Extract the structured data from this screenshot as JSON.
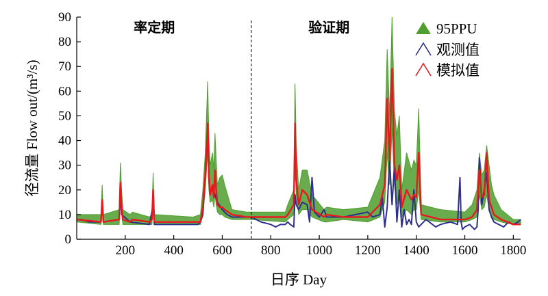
{
  "chart_data": {
    "type": "line",
    "xlabel": "日序 Day",
    "ylabel": "径流量 Flow out/(m³/s)",
    "xlim": [
      0,
      1830
    ],
    "ylim": [
      0,
      90
    ],
    "xticks": [
      200,
      400,
      600,
      800,
      1000,
      1200,
      1400,
      1600,
      1800
    ],
    "yticks": [
      0,
      10,
      20,
      30,
      40,
      50,
      60,
      70,
      80,
      90
    ],
    "grid": false,
    "legend_position": "top-right",
    "periods": [
      {
        "label": "率定期",
        "x_center": 320
      },
      {
        "label": "验证期",
        "x_center": 1040
      }
    ],
    "divider_x": 720,
    "series": [
      {
        "name": "95PPU",
        "kind": "band",
        "color": "#4f9e2f",
        "x": [
          0,
          100,
          105,
          110,
          175,
          180,
          185,
          190,
          220,
          230,
          300,
          310,
          315,
          320,
          480,
          510,
          520,
          530,
          540,
          545,
          550,
          560,
          565,
          570,
          575,
          580,
          590,
          600,
          610,
          640,
          700,
          720,
          860,
          870,
          895,
          900,
          905,
          915,
          930,
          950,
          970,
          1020,
          1030,
          1100,
          1200,
          1250,
          1270,
          1280,
          1290,
          1300,
          1310,
          1320,
          1330,
          1340,
          1360,
          1380,
          1390,
          1400,
          1410,
          1420,
          1500,
          1600,
          1630,
          1650,
          1660,
          1670,
          1680,
          1690,
          1700,
          1710,
          1720,
          1750,
          1800,
          1830
        ],
        "upper": [
          10,
          10,
          22,
          10,
          12,
          31,
          20,
          12,
          10,
          11,
          9,
          10,
          27,
          10,
          9,
          10,
          20,
          35,
          64,
          40,
          30,
          35,
          28,
          43,
          32,
          22,
          25,
          26,
          22,
          12,
          11,
          11,
          11,
          14,
          20,
          63,
          38,
          20,
          28,
          28,
          18,
          12,
          13,
          12,
          13,
          25,
          40,
          77,
          50,
          90,
          52,
          42,
          50,
          20,
          35,
          28,
          32,
          30,
          53,
          14,
          12,
          11,
          14,
          20,
          35,
          26,
          28,
          38,
          30,
          22,
          18,
          12,
          8,
          8
        ],
        "lower": [
          7,
          6,
          12,
          6,
          6,
          15,
          11,
          6,
          6,
          6,
          6,
          6,
          14,
          6,
          6,
          6,
          10,
          20,
          36,
          20,
          15,
          16,
          13,
          18,
          14,
          11,
          10,
          10,
          9,
          8,
          8,
          8,
          7,
          8,
          10,
          30,
          18,
          10,
          12,
          12,
          9,
          7,
          7,
          8,
          7,
          9,
          15,
          35,
          22,
          45,
          22,
          14,
          20,
          9,
          12,
          10,
          12,
          12,
          20,
          8,
          7,
          7,
          8,
          9,
          18,
          12,
          13,
          18,
          12,
          9,
          8,
          7,
          6,
          6
        ]
      },
      {
        "name": "观测值",
        "kind": "line",
        "color": "#2e2e8c",
        "x": [
          0,
          20,
          50,
          100,
          105,
          110,
          175,
          180,
          185,
          220,
          300,
          315,
          320,
          480,
          500,
          510,
          520,
          530,
          540,
          545,
          550,
          560,
          570,
          580,
          600,
          620,
          640,
          660,
          700,
          720,
          760,
          800,
          820,
          840,
          860,
          870,
          880,
          895,
          900,
          905,
          915,
          930,
          950,
          960,
          970,
          980,
          1000,
          1020,
          1030,
          1100,
          1150,
          1200,
          1220,
          1250,
          1260,
          1270,
          1280,
          1290,
          1300,
          1310,
          1320,
          1330,
          1340,
          1350,
          1360,
          1370,
          1380,
          1390,
          1400,
          1410,
          1420,
          1440,
          1480,
          1500,
          1540,
          1570,
          1580,
          1585,
          1590,
          1600,
          1620,
          1640,
          1650,
          1655,
          1660,
          1670,
          1680,
          1690,
          1700,
          1710,
          1720,
          1740,
          1760,
          1780,
          1800,
          1820,
          1830
        ],
        "y": [
          8,
          8,
          7,
          7,
          14,
          7,
          8,
          20,
          10,
          7,
          6,
          14,
          6,
          6,
          6,
          7,
          10,
          26,
          42,
          24,
          18,
          21,
          18,
          15,
          12,
          10,
          9,
          9,
          9,
          9,
          7,
          6,
          5,
          6,
          6,
          7,
          6,
          5,
          18,
          14,
          12,
          15,
          14,
          7,
          25,
          11,
          9,
          12,
          9,
          9,
          10,
          11,
          9,
          10,
          17,
          5,
          13,
          32,
          14,
          30,
          7,
          20,
          5,
          12,
          6,
          8,
          6,
          20,
          7,
          5,
          6,
          8,
          5,
          6,
          7,
          6,
          25,
          7,
          4,
          5,
          6,
          4,
          5,
          12,
          33,
          14,
          20,
          27,
          12,
          9,
          7,
          6,
          5,
          7,
          6,
          7,
          8
        ]
      },
      {
        "name": "模拟值",
        "kind": "line",
        "color": "#e8191e",
        "x": [
          0,
          100,
          105,
          110,
          175,
          180,
          185,
          190,
          220,
          230,
          300,
          310,
          315,
          320,
          480,
          510,
          520,
          530,
          540,
          545,
          550,
          560,
          565,
          570,
          575,
          580,
          590,
          600,
          610,
          640,
          700,
          720,
          860,
          870,
          895,
          900,
          905,
          915,
          930,
          950,
          970,
          1020,
          1030,
          1100,
          1200,
          1250,
          1270,
          1280,
          1290,
          1300,
          1310,
          1320,
          1330,
          1340,
          1360,
          1380,
          1390,
          1400,
          1410,
          1420,
          1500,
          1600,
          1630,
          1650,
          1660,
          1670,
          1680,
          1690,
          1700,
          1710,
          1720,
          1750,
          1800,
          1830
        ],
        "y": [
          8,
          7,
          16,
          7,
          8,
          23,
          14,
          8,
          7,
          8,
          7,
          8,
          20,
          7,
          7,
          7,
          13,
          26,
          47,
          26,
          18,
          22,
          17,
          28,
          20,
          14,
          13,
          13,
          12,
          10,
          9,
          9,
          9,
          10,
          14,
          47,
          24,
          14,
          20,
          18,
          12,
          9,
          10,
          9,
          9,
          14,
          22,
          57,
          32,
          69,
          30,
          24,
          30,
          13,
          20,
          16,
          18,
          17,
          35,
          10,
          8,
          8,
          9,
          12,
          28,
          17,
          18,
          35,
          16,
          13,
          10,
          8,
          6,
          6
        ]
      }
    ]
  }
}
